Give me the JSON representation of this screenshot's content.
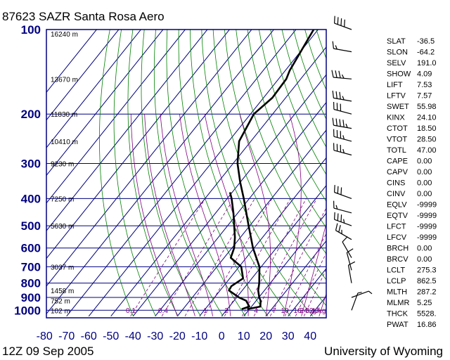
{
  "title": "87623 SAZR Santa Rosa Aero",
  "footer_left": "12Z 09 Sep 2005",
  "footer_right": "University of Wyoming",
  "colors": {
    "frame": "#000080",
    "isotherm": "#000080",
    "dry_adiabat": "#008000",
    "moist_adiabat": "#800080",
    "mixing_ratio": "#800080",
    "profile": "#000000"
  },
  "chart_data": {
    "type": "skew-t",
    "title": "87623 SAZR Santa Rosa Aero",
    "pressure_ticks": [
      "100",
      "200",
      "300",
      "400",
      "500",
      "600",
      "700",
      "800",
      "900",
      "1000"
    ],
    "temperature_ticks": [
      "-80",
      "-70",
      "-60",
      "-50",
      "-40",
      "-30",
      "-20",
      "-10",
      "0",
      "10",
      "20",
      "30",
      "40"
    ],
    "ylim_hpa": [
      1050,
      100
    ],
    "xlim_c": [
      -80,
      45
    ],
    "height_labels": [
      {
        "p": 100,
        "text": "16240 m"
      },
      {
        "p": 150,
        "text": "13670 m"
      },
      {
        "p": 200,
        "text": "11830 m"
      },
      {
        "p": 250,
        "text": "10410 m"
      },
      {
        "p": 300,
        "text": "9230 m"
      },
      {
        "p": 400,
        "text": "7250 m"
      },
      {
        "p": 500,
        "text": "5630 m"
      },
      {
        "p": 700,
        "text": "3037 m"
      },
      {
        "p": 850,
        "text": "1458 m"
      },
      {
        "p": 925,
        "text": "752 m"
      },
      {
        "p": 1000,
        "text": "102 m"
      }
    ],
    "mixing_ratio_labels": [
      "0.1",
      "0.4",
      "1",
      "2",
      "4",
      "7",
      "10",
      "16",
      "24",
      "32",
      "40",
      "g/kg"
    ],
    "temperature_profile": [
      {
        "p": 991,
        "t": 9.0
      },
      {
        "p": 985,
        "t": 10.4
      },
      {
        "p": 970,
        "t": 14.0
      },
      {
        "p": 925,
        "t": 12.0
      },
      {
        "p": 900,
        "t": 10.2
      },
      {
        "p": 850,
        "t": 7.2
      },
      {
        "p": 800,
        "t": 5.0
      },
      {
        "p": 700,
        "t": -0.8
      },
      {
        "p": 600,
        "t": -10.5
      },
      {
        "p": 500,
        "t": -20.5
      },
      {
        "p": 400,
        "t": -32.5
      },
      {
        "p": 350,
        "t": -40.0
      },
      {
        "p": 300,
        "t": -48.0
      },
      {
        "p": 250,
        "t": -55.3
      },
      {
        "p": 200,
        "t": -58.5
      },
      {
        "p": 175,
        "t": -56.0
      },
      {
        "p": 150,
        "t": -56.5
      },
      {
        "p": 140,
        "t": -58.0
      },
      {
        "p": 100,
        "t": -62.0
      }
    ],
    "dewpoint_profile": [
      {
        "p": 991,
        "t": 6.5
      },
      {
        "p": 985,
        "t": 7.2
      },
      {
        "p": 970,
        "t": 9.0
      },
      {
        "p": 925,
        "t": 5.5
      },
      {
        "p": 900,
        "t": 1.0
      },
      {
        "p": 850,
        "t": -6.0
      },
      {
        "p": 820,
        "t": -6.5
      },
      {
        "p": 770,
        "t": -4.0
      },
      {
        "p": 700,
        "t": -9.0
      },
      {
        "p": 650,
        "t": -17.0
      },
      {
        "p": 600,
        "t": -19.0
      },
      {
        "p": 550,
        "t": -22.5
      },
      {
        "p": 500,
        "t": -27.0
      },
      {
        "p": 450,
        "t": -32.0
      },
      {
        "p": 400,
        "t": -38.0
      },
      {
        "p": 380,
        "t": -41.0
      }
    ],
    "wind_barbs": [
      {
        "p": 100,
        "dir": 290,
        "kt": 40
      },
      {
        "p": 120,
        "dir": 280,
        "kt": 15
      },
      {
        "p": 150,
        "dir": 275,
        "kt": 35
      },
      {
        "p": 180,
        "dir": 280,
        "kt": 35
      },
      {
        "p": 200,
        "dir": 285,
        "kt": 30
      },
      {
        "p": 225,
        "dir": 280,
        "kt": 45
      },
      {
        "p": 250,
        "dir": 285,
        "kt": 35
      },
      {
        "p": 280,
        "dir": 285,
        "kt": 35
      },
      {
        "p": 400,
        "dir": 290,
        "kt": 30
      },
      {
        "p": 450,
        "dir": 285,
        "kt": 15
      },
      {
        "p": 500,
        "dir": 290,
        "kt": 35
      },
      {
        "p": 560,
        "dir": 300,
        "kt": 25
      },
      {
        "p": 650,
        "dir": 330,
        "kt": 10
      },
      {
        "p": 720,
        "dir": 345,
        "kt": 10
      },
      {
        "p": 800,
        "dir": 350,
        "kt": 10
      },
      {
        "p": 900,
        "dir": 70,
        "kt": 5
      },
      {
        "p": 1000,
        "dir": 20,
        "kt": 5
      }
    ]
  },
  "indices": [
    {
      "name": "SLAT",
      "value": "-36.5"
    },
    {
      "name": "SLON",
      "value": "-64.2"
    },
    {
      "name": "SELV",
      "value": "191.0"
    },
    {
      "name": "SHOW",
      "value": "4.09"
    },
    {
      "name": "LIFT",
      "value": "7.53"
    },
    {
      "name": "LFTV",
      "value": "7.57"
    },
    {
      "name": "SWET",
      "value": "55.98"
    },
    {
      "name": "KINX",
      "value": "24.10"
    },
    {
      "name": "CTOT",
      "value": "18.50"
    },
    {
      "name": "VTOT",
      "value": "28.50"
    },
    {
      "name": "TOTL",
      "value": "47.00"
    },
    {
      "name": "CAPE",
      "value": "0.00"
    },
    {
      "name": "CAPV",
      "value": "0.00"
    },
    {
      "name": "CINS",
      "value": "0.00"
    },
    {
      "name": "CINV",
      "value": "0.00"
    },
    {
      "name": "EQLV",
      "value": "-9999"
    },
    {
      "name": "EQTV",
      "value": "-9999"
    },
    {
      "name": "LFCT",
      "value": "-9999"
    },
    {
      "name": "LFCV",
      "value": "-9999"
    },
    {
      "name": "BRCH",
      "value": "0.00"
    },
    {
      "name": "BRCV",
      "value": "0.00"
    },
    {
      "name": "LCLT",
      "value": "275.3"
    },
    {
      "name": "LCLP",
      "value": "862.5"
    },
    {
      "name": "MLTH",
      "value": "287.2"
    },
    {
      "name": "MLMR",
      "value": "5.25"
    },
    {
      "name": "THCK",
      "value": "5528."
    },
    {
      "name": "PWAT",
      "value": "16.86"
    }
  ]
}
